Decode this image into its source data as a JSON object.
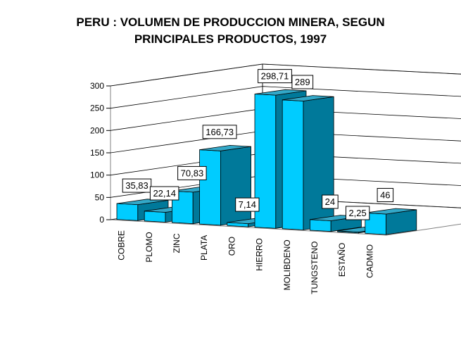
{
  "chart_data": {
    "type": "bar",
    "title_lines": [
      "PERU : VOLUMEN DE PRODUCCION MINERA, SEGUN",
      "PRINCIPALES PRODUCTOS, 1997"
    ],
    "categories": [
      "COBRE",
      "PLOMO",
      "ZINC",
      "PLATA",
      "ORO",
      "HIERRO",
      "MOLIBDENO",
      "TUNGSTENO",
      "ESTAÑO",
      "CADMIO"
    ],
    "values": [
      35.83,
      22.14,
      70.83,
      166.73,
      7.14,
      298.71,
      289,
      24,
      2.25,
      46
    ],
    "data_labels": [
      "35,83",
      "22,14",
      "70,83",
      "166,73",
      "7,14",
      "298,71",
      "289",
      "24",
      "2,25",
      "46"
    ],
    "y_ticks": [
      0,
      50,
      100,
      150,
      200,
      250,
      300
    ],
    "ylim": [
      0,
      300
    ],
    "xlabel": "",
    "ylabel": "",
    "grid": true,
    "style": "3d-column",
    "legend": "none",
    "colors": {
      "bar_front": "#00ccff",
      "bar_side": "#00799a",
      "bar_top": "#33a8c8",
      "wall": "#ffffff",
      "grid": "#000000"
    }
  }
}
